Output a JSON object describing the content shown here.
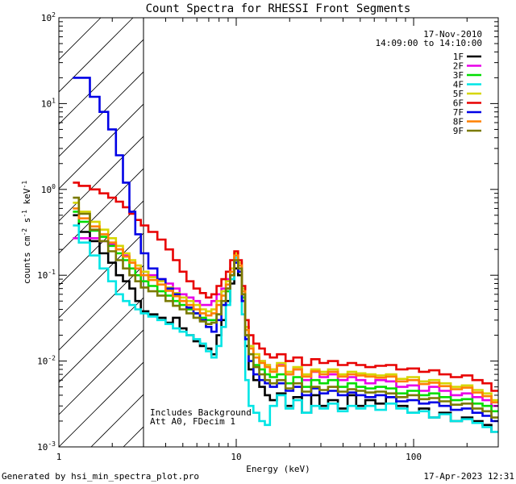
{
  "chart_data": {
    "type": "line",
    "title": "Count Spectra for RHESSI Front Segments",
    "xlabel": "Energy (keV)",
    "ylabel": "counts cm",
    "ylabel_sup1": "-2",
    "ylabel_s": " s",
    "ylabel_sup2": "-1",
    "ylabel_kev": " keV",
    "ylabel_sup3": "-1",
    "xscale": "log",
    "yscale": "log",
    "xlim": [
      1,
      300
    ],
    "ylim": [
      0.001,
      100
    ],
    "xticks": [
      {
        "value": 1,
        "label": "1"
      },
      {
        "value": 10,
        "label": "10"
      },
      {
        "value": 100,
        "label": "100"
      }
    ],
    "yticks": [
      {
        "value": 0.001,
        "base": "10",
        "exp": "-3"
      },
      {
        "value": 0.01,
        "base": "10",
        "exp": "-2"
      },
      {
        "value": 0.1,
        "base": "10",
        "exp": "-1"
      },
      {
        "value": 1,
        "base": "10",
        "exp": "0"
      },
      {
        "value": 10,
        "base": "10",
        "exp": "1"
      },
      {
        "value": 100,
        "base": "10",
        "exp": "2"
      }
    ],
    "hatched_region": {
      "x_max_keV": 3
    },
    "date_text": "17-Nov-2010",
    "time_text": "14:09:00 to 14:10:00",
    "annotation_lines": [
      "Includes Background",
      "Att A0, FDecim 1"
    ],
    "legend_position": "top-right",
    "energy_bins": [
      1.2,
      1.4,
      1.6,
      1.8,
      2.0,
      2.2,
      2.4,
      2.6,
      2.8,
      3.0,
      3.4,
      3.8,
      4.2,
      4.6,
      5.0,
      5.5,
      6.0,
      6.5,
      7.0,
      7.5,
      8.0,
      8.5,
      9.0,
      9.5,
      10.0,
      10.5,
      11.0,
      11.5,
      12.0,
      13.0,
      14.0,
      15.0,
      16.0,
      18.0,
      20.0,
      22.0,
      25.0,
      28.0,
      31.0,
      35.0,
      40.0,
      45.0,
      50.0,
      57.0,
      65.0,
      75.0,
      85.0,
      100.0,
      115.0,
      130.0,
      150.0,
      175.0,
      200.0,
      230.0,
      260.0,
      290.0
    ],
    "series": [
      {
        "name": "1F",
        "color": "#000000",
        "values": [
          0.5,
          0.32,
          0.25,
          0.18,
          0.14,
          0.1,
          0.085,
          0.07,
          0.05,
          0.038,
          0.035,
          0.032,
          0.028,
          0.032,
          0.024,
          0.02,
          0.017,
          0.015,
          0.014,
          0.012,
          0.02,
          0.03,
          0.05,
          0.08,
          0.12,
          0.1,
          0.05,
          0.015,
          0.008,
          0.006,
          0.005,
          0.004,
          0.0035,
          0.0042,
          0.003,
          0.0038,
          0.0025,
          0.004,
          0.003,
          0.0035,
          0.0028,
          0.004,
          0.003,
          0.0035,
          0.0032,
          0.0038,
          0.003,
          0.0025,
          0.0028,
          0.0022,
          0.0025,
          0.002,
          0.0022,
          0.002,
          0.0018,
          0.0015
        ]
      },
      {
        "name": "2F",
        "color": "#e800e8",
        "values": [
          0.27,
          0.27,
          0.27,
          0.25,
          0.23,
          0.2,
          0.17,
          0.14,
          0.12,
          0.11,
          0.1,
          0.09,
          0.08,
          0.07,
          0.06,
          0.055,
          0.05,
          0.045,
          0.045,
          0.05,
          0.06,
          0.07,
          0.09,
          0.12,
          0.15,
          0.12,
          0.06,
          0.025,
          0.015,
          0.012,
          0.01,
          0.009,
          0.008,
          0.009,
          0.007,
          0.008,
          0.006,
          0.0075,
          0.0065,
          0.007,
          0.006,
          0.0065,
          0.006,
          0.0055,
          0.006,
          0.0058,
          0.005,
          0.0052,
          0.0045,
          0.005,
          0.0045,
          0.004,
          0.0042,
          0.0038,
          0.0035,
          0.003
        ]
      },
      {
        "name": "3F",
        "color": "#00dd00",
        "values": [
          0.55,
          0.42,
          0.33,
          0.28,
          0.22,
          0.18,
          0.15,
          0.12,
          0.1,
          0.085,
          0.075,
          0.065,
          0.058,
          0.05,
          0.045,
          0.04,
          0.036,
          0.032,
          0.03,
          0.03,
          0.035,
          0.045,
          0.065,
          0.1,
          0.14,
          0.11,
          0.055,
          0.02,
          0.012,
          0.009,
          0.008,
          0.007,
          0.0065,
          0.007,
          0.0055,
          0.0065,
          0.005,
          0.006,
          0.0055,
          0.006,
          0.005,
          0.0055,
          0.005,
          0.0048,
          0.005,
          0.0048,
          0.0042,
          0.0045,
          0.004,
          0.0042,
          0.0038,
          0.0035,
          0.0036,
          0.0032,
          0.003,
          0.0026
        ]
      },
      {
        "name": "4F",
        "color": "#00e5e5",
        "values": [
          0.38,
          0.24,
          0.17,
          0.12,
          0.085,
          0.06,
          0.05,
          0.045,
          0.04,
          0.036,
          0.033,
          0.03,
          0.027,
          0.024,
          0.022,
          0.02,
          0.018,
          0.016,
          0.013,
          0.011,
          0.015,
          0.025,
          0.045,
          0.09,
          0.16,
          0.12,
          0.035,
          0.006,
          0.003,
          0.0025,
          0.002,
          0.0018,
          0.003,
          0.004,
          0.0028,
          0.0035,
          0.0025,
          0.003,
          0.0028,
          0.0032,
          0.0026,
          0.003,
          0.0028,
          0.003,
          0.0027,
          0.0032,
          0.0028,
          0.0025,
          0.0026,
          0.0022,
          0.0024,
          0.002,
          0.0021,
          0.0019,
          0.0017,
          0.0015
        ]
      },
      {
        "name": "5F",
        "color": "#d6d600",
        "values": [
          0.7,
          0.55,
          0.42,
          0.34,
          0.27,
          0.22,
          0.18,
          0.15,
          0.13,
          0.11,
          0.095,
          0.085,
          0.072,
          0.062,
          0.055,
          0.05,
          0.045,
          0.04,
          0.038,
          0.04,
          0.05,
          0.065,
          0.085,
          0.12,
          0.18,
          0.14,
          0.07,
          0.025,
          0.015,
          0.012,
          0.01,
          0.009,
          0.008,
          0.0095,
          0.0075,
          0.0085,
          0.007,
          0.008,
          0.0075,
          0.008,
          0.007,
          0.0075,
          0.0072,
          0.007,
          0.0068,
          0.007,
          0.0062,
          0.0065,
          0.0058,
          0.006,
          0.0055,
          0.005,
          0.0052,
          0.0046,
          0.0042,
          0.0035
        ]
      },
      {
        "name": "6F",
        "color": "#e80000",
        "values": [
          1.2,
          1.1,
          1.0,
          0.9,
          0.8,
          0.72,
          0.62,
          0.52,
          0.44,
          0.38,
          0.32,
          0.26,
          0.2,
          0.15,
          0.11,
          0.085,
          0.07,
          0.062,
          0.055,
          0.06,
          0.075,
          0.09,
          0.11,
          0.15,
          0.19,
          0.15,
          0.075,
          0.03,
          0.02,
          0.016,
          0.014,
          0.012,
          0.011,
          0.012,
          0.01,
          0.011,
          0.009,
          0.0105,
          0.0095,
          0.01,
          0.009,
          0.0095,
          0.009,
          0.0085,
          0.0088,
          0.009,
          0.008,
          0.0082,
          0.0075,
          0.0078,
          0.007,
          0.0065,
          0.0068,
          0.006,
          0.0055,
          0.0045
        ]
      },
      {
        "name": "7F",
        "color": "#0000e6",
        "values": [
          20,
          20,
          12,
          8,
          5,
          2.5,
          1.2,
          0.55,
          0.3,
          0.18,
          0.12,
          0.09,
          0.07,
          0.06,
          0.05,
          0.042,
          0.036,
          0.03,
          0.025,
          0.022,
          0.03,
          0.045,
          0.07,
          0.1,
          0.14,
          0.11,
          0.05,
          0.018,
          0.01,
          0.007,
          0.006,
          0.0055,
          0.005,
          0.0055,
          0.0045,
          0.005,
          0.004,
          0.0048,
          0.0042,
          0.0045,
          0.004,
          0.0043,
          0.004,
          0.0038,
          0.004,
          0.0038,
          0.0034,
          0.0035,
          0.0032,
          0.0033,
          0.003,
          0.0027,
          0.0028,
          0.0025,
          0.0023,
          0.002
        ]
      },
      {
        "name": "8F",
        "color": "#ff8000",
        "values": [
          0.6,
          0.46,
          0.37,
          0.3,
          0.24,
          0.2,
          0.165,
          0.14,
          0.12,
          0.1,
          0.088,
          0.078,
          0.066,
          0.057,
          0.05,
          0.045,
          0.04,
          0.036,
          0.034,
          0.036,
          0.045,
          0.058,
          0.078,
          0.11,
          0.17,
          0.13,
          0.065,
          0.023,
          0.014,
          0.011,
          0.0095,
          0.0085,
          0.0075,
          0.0088,
          0.007,
          0.008,
          0.0066,
          0.0076,
          0.007,
          0.0075,
          0.0066,
          0.007,
          0.0068,
          0.0066,
          0.0064,
          0.0066,
          0.0058,
          0.006,
          0.0054,
          0.0056,
          0.0051,
          0.0047,
          0.0049,
          0.0043,
          0.0039,
          0.0033
        ]
      },
      {
        "name": "9F",
        "color": "#7a7a00",
        "values": [
          0.8,
          0.52,
          0.34,
          0.25,
          0.19,
          0.15,
          0.12,
          0.1,
          0.085,
          0.072,
          0.065,
          0.058,
          0.05,
          0.044,
          0.04,
          0.036,
          0.032,
          0.029,
          0.027,
          0.028,
          0.035,
          0.05,
          0.07,
          0.1,
          0.15,
          0.12,
          0.06,
          0.02,
          0.012,
          0.0085,
          0.007,
          0.006,
          0.0055,
          0.006,
          0.0048,
          0.0055,
          0.0044,
          0.005,
          0.0046,
          0.005,
          0.0044,
          0.0047,
          0.0045,
          0.0043,
          0.0044,
          0.0042,
          0.0038,
          0.004,
          0.0036,
          0.0037,
          0.0034,
          0.0031,
          0.0032,
          0.0028,
          0.0026,
          0.0022
        ]
      }
    ]
  },
  "footer": {
    "generated_by": "Generated by hsi_min_spectra_plot.pro",
    "timestamp": "17-Apr-2023 12:31"
  }
}
